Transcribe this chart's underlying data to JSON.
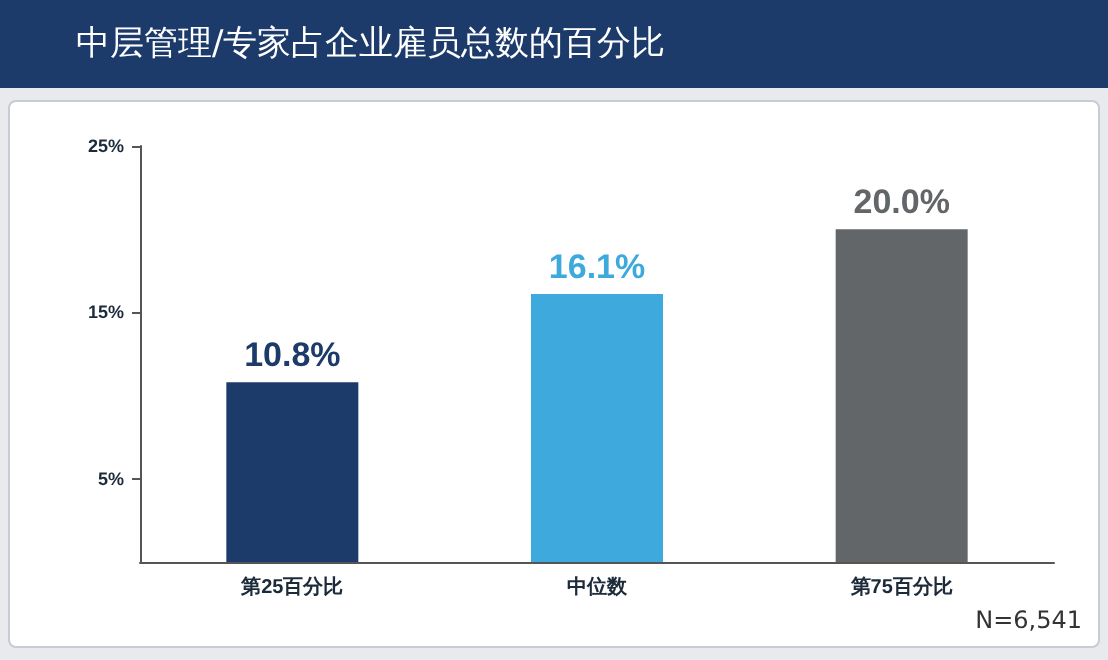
{
  "chart_data": {
    "type": "bar",
    "title": "中层管理/专家占企业雇员总数的百分比",
    "categories": [
      "第25百分比",
      "中位数",
      "第75百分比"
    ],
    "values": [
      10.8,
      16.1,
      20.0
    ],
    "colors": [
      "#1c3b6b",
      "#3ea9dd",
      "#636669"
    ],
    "value_labels": [
      "10.8%",
      "16.1%",
      "20.0%"
    ],
    "ylim": [
      0,
      25
    ],
    "yticks": [
      {
        "value": 5,
        "label": "5%"
      },
      {
        "value": 15,
        "label": "15%"
      },
      {
        "value": 25,
        "label": "25%"
      }
    ],
    "grid": false,
    "annotations": [
      "N=6,541"
    ]
  }
}
